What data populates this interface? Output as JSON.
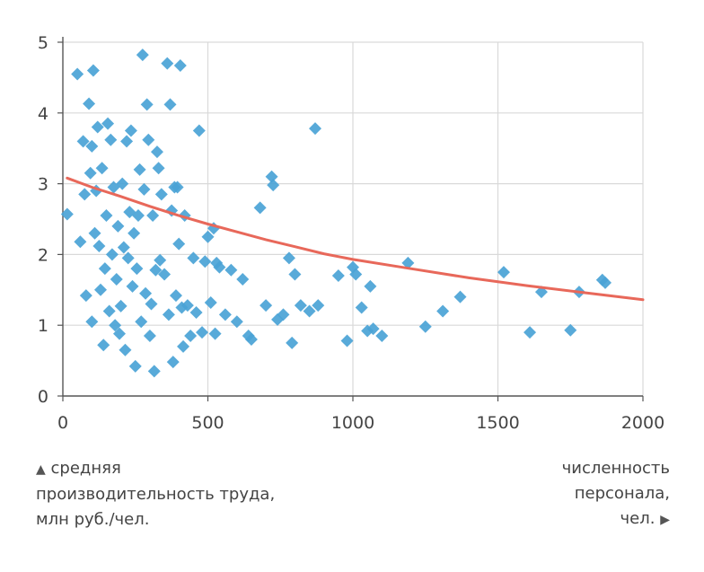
{
  "legend": {
    "y_marker": "▲",
    "y_label": "средняя\nпроизводительность труда,\nмлн руб./чел.",
    "x_marker": "▶",
    "x_label": "численность\nперсонала,\nчел."
  },
  "colors": {
    "points": "#4aa3d6",
    "trend": "#e8685a",
    "grid": "#d9d9d9",
    "axis": "#555555"
  },
  "chart_data": {
    "type": "scatter",
    "title": "",
    "xlabel": "численность персонала, чел.",
    "ylabel": "средняя производительность труда, млн руб./чел.",
    "xlim": [
      0,
      2000
    ],
    "ylim": [
      0,
      5
    ],
    "xticks": [
      0,
      500,
      1000,
      1500,
      2000
    ],
    "yticks": [
      0,
      1,
      2,
      3,
      4,
      5
    ],
    "grid": true,
    "marker": "diamond",
    "series": [
      {
        "points": [
          [
            15,
            2.57
          ],
          [
            50,
            4.55
          ],
          [
            60,
            2.18
          ],
          [
            70,
            3.6
          ],
          [
            75,
            2.85
          ],
          [
            80,
            1.42
          ],
          [
            90,
            4.13
          ],
          [
            95,
            3.15
          ],
          [
            100,
            1.05
          ],
          [
            100,
            3.53
          ],
          [
            105,
            4.6
          ],
          [
            110,
            2.3
          ],
          [
            115,
            2.9
          ],
          [
            120,
            3.8
          ],
          [
            125,
            2.12
          ],
          [
            130,
            1.5
          ],
          [
            135,
            3.22
          ],
          [
            140,
            0.72
          ],
          [
            145,
            1.8
          ],
          [
            150,
            2.55
          ],
          [
            155,
            3.85
          ],
          [
            160,
            1.2
          ],
          [
            165,
            3.62
          ],
          [
            170,
            2.0
          ],
          [
            175,
            2.95
          ],
          [
            180,
            1.0
          ],
          [
            185,
            1.65
          ],
          [
            190,
            2.4
          ],
          [
            195,
            0.88
          ],
          [
            200,
            1.27
          ],
          [
            205,
            3.0
          ],
          [
            210,
            2.1
          ],
          [
            215,
            0.65
          ],
          [
            220,
            3.6
          ],
          [
            225,
            1.95
          ],
          [
            230,
            2.6
          ],
          [
            235,
            3.75
          ],
          [
            240,
            1.55
          ],
          [
            245,
            2.3
          ],
          [
            250,
            0.42
          ],
          [
            255,
            1.8
          ],
          [
            260,
            2.55
          ],
          [
            265,
            3.2
          ],
          [
            270,
            1.05
          ],
          [
            275,
            4.82
          ],
          [
            280,
            2.92
          ],
          [
            285,
            1.45
          ],
          [
            290,
            4.12
          ],
          [
            295,
            3.62
          ],
          [
            300,
            0.85
          ],
          [
            305,
            1.3
          ],
          [
            310,
            2.55
          ],
          [
            315,
            0.35
          ],
          [
            320,
            1.78
          ],
          [
            325,
            3.45
          ],
          [
            330,
            3.22
          ],
          [
            335,
            1.92
          ],
          [
            340,
            2.85
          ],
          [
            350,
            1.72
          ],
          [
            360,
            4.7
          ],
          [
            365,
            1.15
          ],
          [
            370,
            4.12
          ],
          [
            375,
            2.62
          ],
          [
            380,
            0.48
          ],
          [
            385,
            2.95
          ],
          [
            390,
            1.42
          ],
          [
            395,
            2.95
          ],
          [
            400,
            2.15
          ],
          [
            405,
            4.67
          ],
          [
            410,
            1.25
          ],
          [
            415,
            0.7
          ],
          [
            420,
            2.55
          ],
          [
            430,
            1.28
          ],
          [
            440,
            0.85
          ],
          [
            450,
            1.95
          ],
          [
            460,
            1.18
          ],
          [
            470,
            3.75
          ],
          [
            480,
            0.9
          ],
          [
            490,
            1.9
          ],
          [
            500,
            2.25
          ],
          [
            510,
            1.32
          ],
          [
            520,
            2.37
          ],
          [
            525,
            0.88
          ],
          [
            530,
            1.88
          ],
          [
            540,
            1.82
          ],
          [
            560,
            1.15
          ],
          [
            580,
            1.78
          ],
          [
            600,
            1.05
          ],
          [
            620,
            1.65
          ],
          [
            640,
            0.85
          ],
          [
            650,
            0.8
          ],
          [
            680,
            2.66
          ],
          [
            700,
            1.28
          ],
          [
            720,
            3.1
          ],
          [
            725,
            2.98
          ],
          [
            740,
            1.08
          ],
          [
            760,
            1.15
          ],
          [
            780,
            1.95
          ],
          [
            790,
            0.75
          ],
          [
            800,
            1.72
          ],
          [
            820,
            1.28
          ],
          [
            850,
            1.2
          ],
          [
            870,
            3.78
          ],
          [
            880,
            1.28
          ],
          [
            950,
            1.7
          ],
          [
            980,
            0.78
          ],
          [
            1000,
            1.82
          ],
          [
            1010,
            1.72
          ],
          [
            1030,
            1.25
          ],
          [
            1050,
            0.92
          ],
          [
            1060,
            1.55
          ],
          [
            1070,
            0.95
          ],
          [
            1100,
            0.85
          ],
          [
            1190,
            1.88
          ],
          [
            1250,
            0.98
          ],
          [
            1310,
            1.2
          ],
          [
            1370,
            1.4
          ],
          [
            1520,
            1.75
          ],
          [
            1610,
            0.9
          ],
          [
            1650,
            1.47
          ],
          [
            1750,
            0.93
          ],
          [
            1780,
            1.47
          ],
          [
            1860,
            1.64
          ],
          [
            1870,
            1.6
          ]
        ]
      }
    ],
    "trendline": {
      "type": "power",
      "points": [
        [
          15,
          3.08
        ],
        [
          100,
          2.95
        ],
        [
          200,
          2.82
        ],
        [
          300,
          2.68
        ],
        [
          400,
          2.55
        ],
        [
          500,
          2.43
        ],
        [
          600,
          2.32
        ],
        [
          700,
          2.21
        ],
        [
          800,
          2.11
        ],
        [
          900,
          2.01
        ],
        [
          1000,
          1.93
        ],
        [
          1200,
          1.8
        ],
        [
          1400,
          1.67
        ],
        [
          1600,
          1.56
        ],
        [
          1800,
          1.46
        ],
        [
          2000,
          1.36
        ]
      ]
    }
  }
}
